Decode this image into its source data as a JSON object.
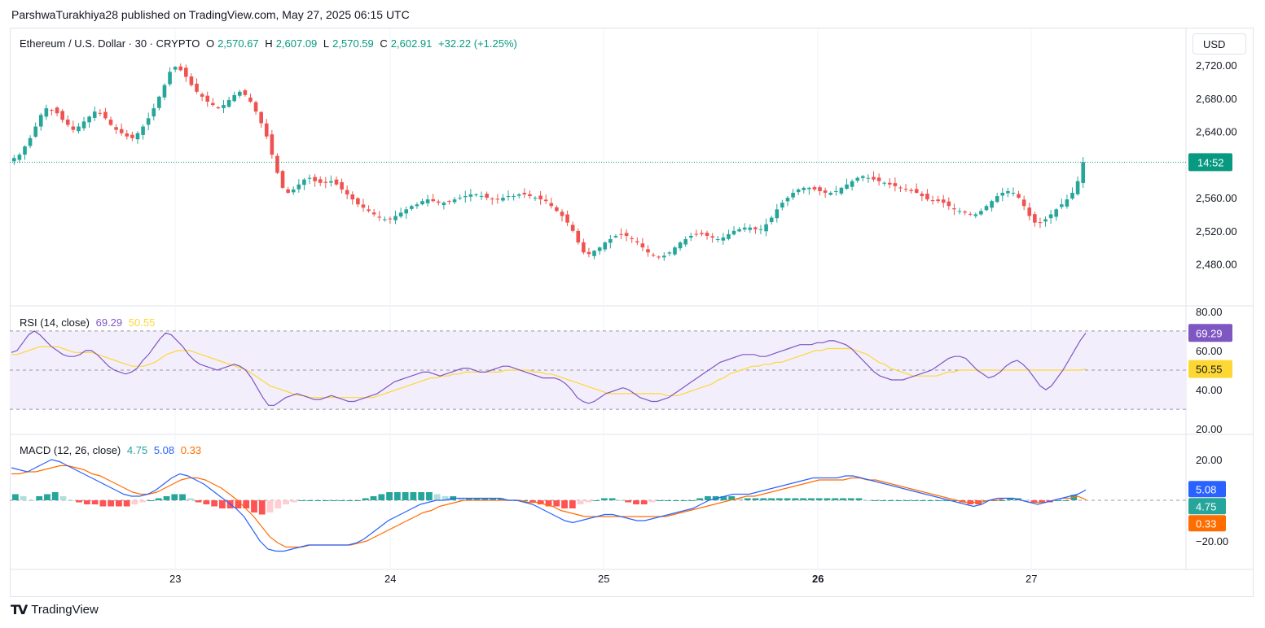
{
  "attribution": "ParshwaTurakhiya28 published on TradingView.com, May 27, 2025 06:15 UTC",
  "currency_button": "USD",
  "footer_logo": "TradingView",
  "colors": {
    "up": "#26a69a",
    "down": "#ef5350",
    "rsi": "#7e57c2",
    "rsi_ma": "#fdd835",
    "macd": "#2962ff",
    "signal": "#ff6d00",
    "last_price_bg": "#089981",
    "rsi_band": "#f3eefc"
  },
  "price_legend": {
    "symbol": "Ethereum / U.S. Dollar · 30 · CRYPTO",
    "o_label": "O",
    "o_value": "2,570.67",
    "h_label": "H",
    "h_value": "2,607.09",
    "l_label": "L",
    "l_value": "2,570.59",
    "c_label": "C",
    "c_value": "2,602.91",
    "change": "+32.22 (+1.25%)"
  },
  "rsi_legend": {
    "title": "RSI (14, close)",
    "rsi_value": "69.29",
    "ma_value": "50.55"
  },
  "macd_legend": {
    "title": "MACD (12, 26, close)",
    "hist_value": "4.75",
    "macd_value": "5.08",
    "signal_value": "0.33"
  },
  "chart_data": [
    {
      "type": "candlestick",
      "title": "Ethereum / U.S. Dollar · 30 · CRYPTO",
      "ylim": [
        2450,
        2735
      ],
      "y_ticks": [
        "2,720.00",
        "2,680.00",
        "2,640.00",
        "2,560.00",
        "2,520.00",
        "2,480.00"
      ],
      "y_tick_values": [
        2720,
        2680,
        2640,
        2560,
        2520,
        2480
      ],
      "x_ticks": [
        "23",
        "24",
        "25",
        "26",
        "27"
      ],
      "last_price_label": "14:52",
      "last_price": 2602.91,
      "close_series": [
        2608,
        2612,
        2622,
        2632,
        2646,
        2660,
        2668,
        2666,
        2662,
        2654,
        2648,
        2642,
        2646,
        2652,
        2658,
        2664,
        2662,
        2656,
        2648,
        2642,
        2638,
        2634,
        2632,
        2638,
        2646,
        2656,
        2668,
        2682,
        2696,
        2712,
        2718,
        2714,
        2706,
        2696,
        2688,
        2682,
        2676,
        2672,
        2668,
        2672,
        2678,
        2684,
        2688,
        2684,
        2676,
        2664,
        2650,
        2634,
        2612,
        2590,
        2572,
        2566,
        2570,
        2576,
        2582,
        2584,
        2580,
        2578,
        2578,
        2580,
        2576,
        2570,
        2564,
        2558,
        2552,
        2548,
        2544,
        2540,
        2536,
        2534,
        2534,
        2538,
        2542,
        2546,
        2550,
        2552,
        2556,
        2558,
        2556,
        2554,
        2554,
        2556,
        2558,
        2560,
        2562,
        2564,
        2564,
        2562,
        2560,
        2558,
        2558,
        2560,
        2562,
        2562,
        2564,
        2564,
        2562,
        2560,
        2558,
        2556,
        2550,
        2544,
        2538,
        2530,
        2520,
        2506,
        2494,
        2492,
        2496,
        2500,
        2506,
        2510,
        2514,
        2516,
        2514,
        2510,
        2506,
        2500,
        2494,
        2490,
        2488,
        2490,
        2494,
        2500,
        2506,
        2510,
        2514,
        2516,
        2516,
        2514,
        2512,
        2510,
        2512,
        2516,
        2520,
        2522,
        2524,
        2524,
        2522,
        2522,
        2528,
        2536,
        2546,
        2554,
        2560,
        2566,
        2570,
        2572,
        2572,
        2570,
        2568,
        2566,
        2566,
        2568,
        2572,
        2576,
        2580,
        2584,
        2586,
        2584,
        2582,
        2580,
        2578,
        2576,
        2574,
        2572,
        2570,
        2568,
        2566,
        2562,
        2558,
        2556,
        2556,
        2554,
        2550,
        2546,
        2544,
        2542,
        2540,
        2540,
        2544,
        2550,
        2556,
        2562,
        2566,
        2568,
        2566,
        2560,
        2550,
        2538,
        2530,
        2530,
        2534,
        2540,
        2546,
        2552,
        2558,
        2566,
        2580,
        2603
      ],
      "candle_count": 200
    },
    {
      "type": "line",
      "title": "RSI (14, close)",
      "ylim": [
        18,
        82
      ],
      "y_ticks": [
        "80.00",
        "60.00",
        "40.00",
        "20.00"
      ],
      "y_tick_values": [
        80,
        60,
        40,
        20
      ],
      "bands": [
        30,
        70
      ],
      "series": [
        {
          "name": "RSI",
          "values": [
            59,
            60,
            64,
            68,
            70,
            68,
            65,
            62,
            60,
            58,
            57,
            57,
            58,
            60,
            60,
            58,
            55,
            52,
            50,
            49,
            48,
            49,
            51,
            55,
            58,
            62,
            66,
            69,
            68,
            65,
            62,
            58,
            55,
            53,
            52,
            51,
            50,
            51,
            52,
            53,
            52,
            50,
            46,
            41,
            36,
            32,
            32,
            34,
            36,
            37,
            38,
            37,
            36,
            35,
            35,
            36,
            37,
            36,
            35,
            34,
            34,
            35,
            36,
            37,
            38,
            40,
            42,
            44,
            45,
            46,
            47,
            48,
            49,
            49,
            48,
            47,
            48,
            49,
            50,
            51,
            51,
            50,
            49,
            49,
            50,
            51,
            52,
            52,
            51,
            50,
            49,
            48,
            47,
            46,
            46,
            46,
            45,
            43,
            40,
            36,
            34,
            33,
            34,
            36,
            38,
            39,
            40,
            41,
            40,
            38,
            36,
            35,
            34,
            34,
            35,
            36,
            38,
            40,
            42,
            44,
            46,
            48,
            50,
            52,
            54,
            55,
            56,
            57,
            58,
            58,
            58,
            57,
            57,
            58,
            59,
            60,
            61,
            62,
            63,
            63,
            63,
            64,
            64,
            65,
            65,
            64,
            63,
            61,
            58,
            55,
            52,
            49,
            47,
            46,
            45,
            45,
            45,
            46,
            47,
            48,
            49,
            50,
            52,
            54,
            56,
            57,
            57,
            56,
            53,
            50,
            48,
            46,
            47,
            49,
            52,
            54,
            55,
            53,
            50,
            46,
            42,
            40,
            42,
            46,
            50,
            55,
            60,
            65,
            69
          ]
        },
        {
          "name": "RSI-based MA",
          "values": [
            58,
            58,
            59,
            60,
            61,
            62,
            62,
            62,
            62,
            61,
            60,
            59,
            59,
            59,
            59,
            58,
            57,
            56,
            55,
            54,
            53,
            52,
            52,
            52,
            53,
            54,
            56,
            58,
            59,
            60,
            60,
            60,
            59,
            58,
            57,
            56,
            55,
            54,
            53,
            52,
            51,
            50,
            48,
            46,
            44,
            42,
            41,
            40,
            39,
            38,
            37,
            37,
            36,
            36,
            36,
            36,
            36,
            36,
            36,
            36,
            36,
            36,
            36,
            36,
            37,
            38,
            39,
            40,
            41,
            42,
            43,
            44,
            45,
            46,
            46,
            47,
            47,
            48,
            48,
            49,
            49,
            49,
            49,
            49,
            49,
            49,
            50,
            50,
            50,
            50,
            50,
            49,
            49,
            48,
            48,
            47,
            46,
            45,
            44,
            43,
            42,
            41,
            40,
            39,
            38,
            38,
            38,
            38,
            38,
            38,
            38,
            38,
            38,
            38,
            37,
            37,
            37,
            38,
            39,
            40,
            41,
            42,
            43,
            45,
            46,
            48,
            49,
            50,
            51,
            52,
            52,
            53,
            53,
            54,
            54,
            55,
            56,
            57,
            58,
            59,
            60,
            60,
            61,
            61,
            61,
            61,
            61,
            60,
            59,
            58,
            56,
            54,
            53,
            51,
            50,
            49,
            48,
            47,
            47,
            47,
            47,
            47,
            48,
            49,
            49,
            50,
            50,
            50,
            50,
            50,
            50,
            50,
            50,
            50,
            50,
            50,
            50,
            50,
            50,
            50,
            50,
            50,
            50,
            50,
            50,
            50,
            50,
            50.55
          ]
        }
      ]
    },
    {
      "type": "line",
      "title": "MACD (12, 26, close)",
      "ylim": [
        -32,
        28
      ],
      "y_ticks": [
        "20.00",
        "−20.00"
      ],
      "y_tick_values": [
        20,
        -20
      ],
      "series": [
        {
          "name": "MACD",
          "values": [
            16,
            15,
            14,
            16,
            18,
            20,
            19,
            17,
            15,
            13,
            11,
            9,
            7,
            5,
            3,
            2,
            2,
            3,
            5,
            8,
            11,
            13,
            12,
            10,
            8,
            5,
            2,
            -1,
            -4,
            -8,
            -14,
            -20,
            -24,
            -25,
            -25,
            -24,
            -23,
            -22,
            -22,
            -22,
            -22,
            -22,
            -22,
            -21,
            -19,
            -16,
            -13,
            -10,
            -8,
            -6,
            -4,
            -2,
            -1,
            0,
            0,
            1,
            1,
            1,
            1,
            1,
            1,
            1,
            0,
            0,
            -1,
            -2,
            -4,
            -6,
            -8,
            -10,
            -11,
            -10,
            -9,
            -8,
            -7,
            -7,
            -8,
            -9,
            -10,
            -10,
            -9,
            -8,
            -7,
            -6,
            -5,
            -4,
            -2,
            0,
            1,
            2,
            3,
            3,
            3,
            4,
            5,
            6,
            7,
            8,
            9,
            10,
            11,
            11,
            11,
            11,
            12,
            12,
            11,
            10,
            9,
            8,
            7,
            6,
            5,
            4,
            3,
            2,
            1,
            0,
            -1,
            -2,
            -3,
            -2,
            0,
            1,
            1,
            1,
            0,
            -1,
            -2,
            -1,
            0,
            1,
            2,
            3,
            5.08
          ]
        },
        {
          "name": "Signal",
          "values": [
            13,
            13,
            14,
            14,
            15,
            16,
            17,
            17,
            16,
            15,
            13,
            12,
            10,
            8,
            6,
            4,
            3,
            3,
            4,
            6,
            8,
            10,
            11,
            11,
            10,
            8,
            6,
            3,
            0,
            -4,
            -8,
            -13,
            -18,
            -21,
            -23,
            -23,
            -23,
            -22,
            -22,
            -22,
            -22,
            -22,
            -22,
            -21,
            -20,
            -18,
            -16,
            -14,
            -12,
            -10,
            -8,
            -6,
            -5,
            -3,
            -2,
            -1,
            0,
            0,
            0,
            0,
            0,
            0,
            0,
            0,
            -1,
            -1,
            -2,
            -3,
            -5,
            -6,
            -7,
            -8,
            -8,
            -8,
            -8,
            -8,
            -8,
            -8,
            -8,
            -8,
            -8,
            -8,
            -7,
            -6,
            -5,
            -4,
            -3,
            -2,
            -1,
            0,
            1,
            2,
            2,
            3,
            4,
            5,
            6,
            7,
            8,
            9,
            10,
            10,
            10,
            10,
            11,
            11,
            10,
            10,
            9,
            8,
            7,
            6,
            5,
            4,
            3,
            2,
            1,
            0,
            -1,
            -1,
            -1,
            0,
            0,
            1,
            1,
            0,
            -1,
            -1,
            -1,
            0,
            1,
            1,
            2,
            0.33
          ]
        }
      ],
      "histogram_last": 4.75
    }
  ]
}
